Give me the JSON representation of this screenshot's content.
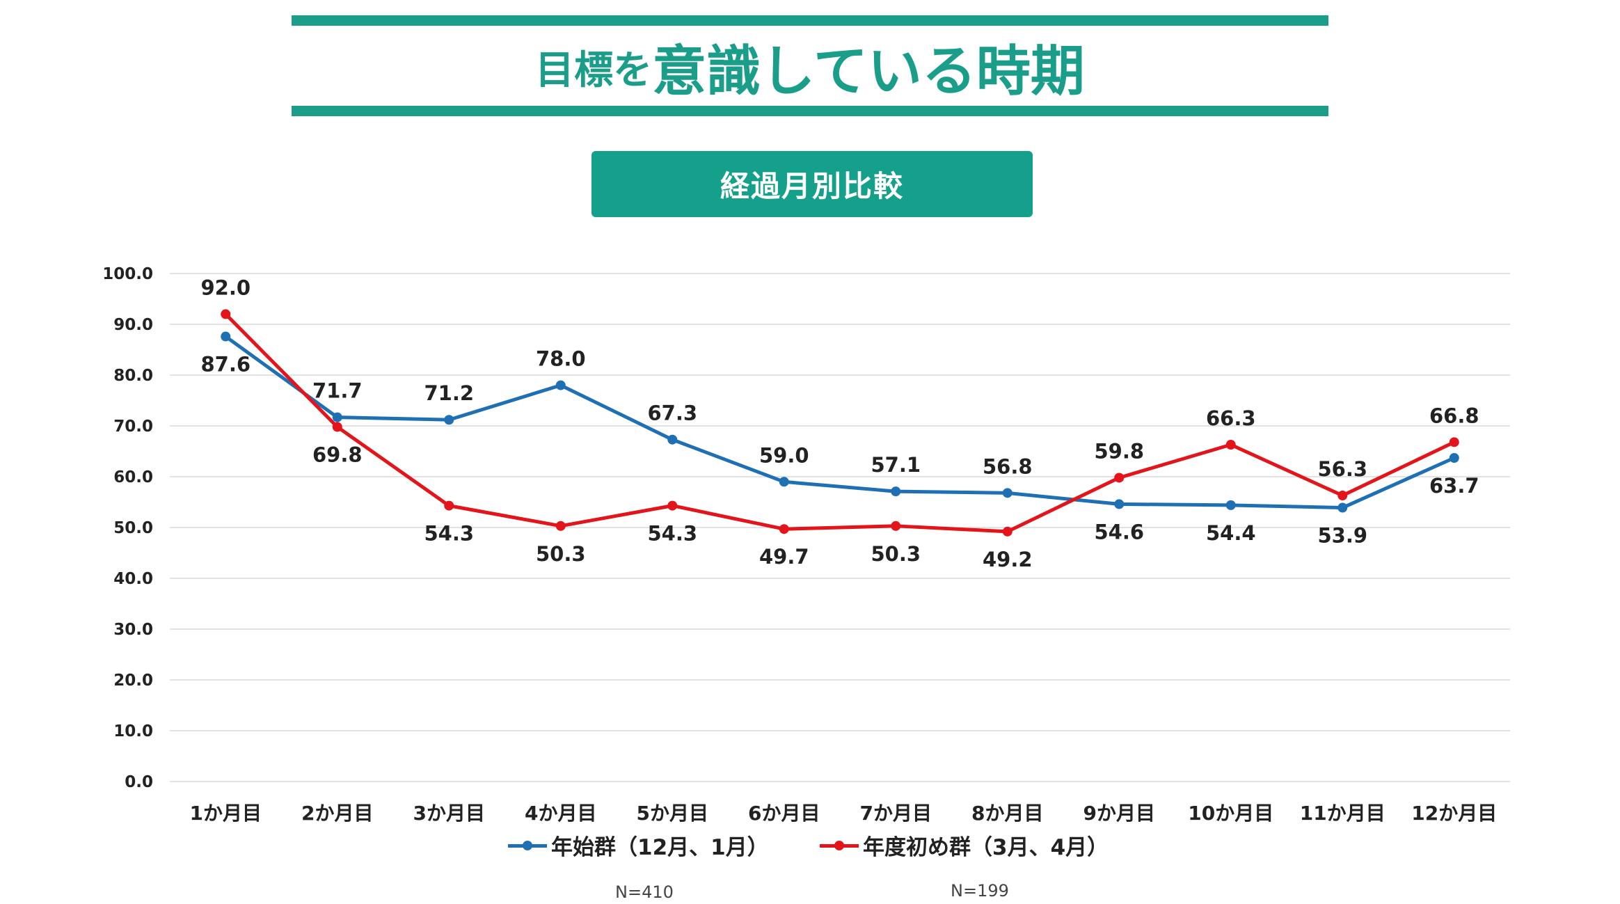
{
  "title": {
    "part1": "目標を",
    "part2": "意識している時期",
    "accent_color": "#1a9e8a"
  },
  "subtitle": "経過月別比較",
  "legend": {
    "series1": "年始群（12月、1月）",
    "series2": "年度初め群（3月、4月）"
  },
  "notes": {
    "n1": "N=410",
    "n2": "N=199"
  },
  "chart_data": {
    "type": "line",
    "categories": [
      "1か月目",
      "2か月目",
      "3か月目",
      "4か月目",
      "5か月目",
      "6か月目",
      "7か月目",
      "8か月目",
      "9か月目",
      "10か月目",
      "11か月目",
      "12か月目"
    ],
    "series": [
      {
        "name": "年始群（12月、1月）",
        "color": "#1f6fb4",
        "values": [
          87.6,
          71.7,
          71.2,
          78.0,
          67.3,
          59.0,
          57.1,
          56.8,
          54.6,
          54.4,
          53.9,
          63.7
        ],
        "label_positions": [
          "below",
          "above",
          "above",
          "above",
          "above",
          "above",
          "above",
          "above",
          "below",
          "below",
          "below",
          "below"
        ]
      },
      {
        "name": "年度初め群（3月、4月）",
        "color": "#e3151a",
        "values": [
          92.0,
          69.8,
          54.3,
          50.3,
          54.3,
          49.7,
          50.3,
          49.2,
          59.8,
          66.3,
          56.3,
          66.8
        ],
        "label_positions": [
          "above",
          "below",
          "below",
          "below",
          "below",
          "below",
          "below",
          "below",
          "above",
          "above",
          "above",
          "above"
        ]
      }
    ],
    "ylim": [
      0,
      100
    ],
    "yticks": [
      "0.0",
      "10.0",
      "20.0",
      "30.0",
      "40.0",
      "50.0",
      "60.0",
      "70.0",
      "80.0",
      "90.0",
      "100.0"
    ],
    "xlabel": "",
    "ylabel": "",
    "grid": true,
    "legend_position": "bottom"
  }
}
